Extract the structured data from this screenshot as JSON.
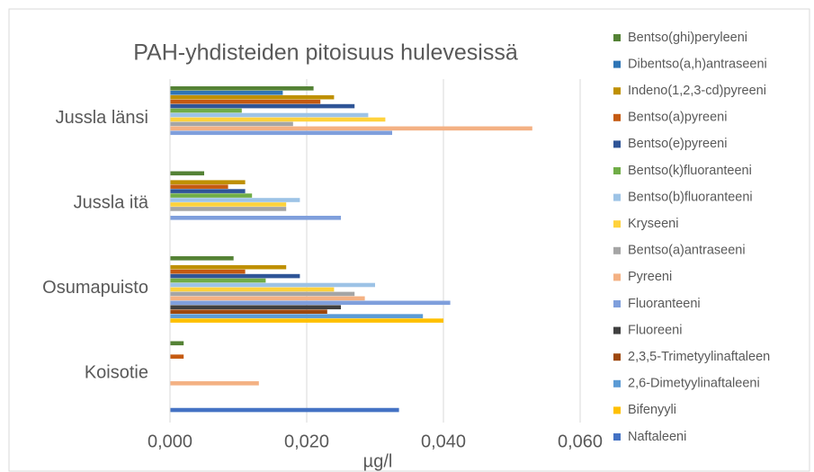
{
  "chart_data": {
    "type": "bar",
    "orientation": "horizontal",
    "title": "PAH-yhdisteiden pitoisuus hulevesissä",
    "x_label": "µg/l",
    "categories": [
      "Jussla länsi",
      "Jussla itä",
      "Osumapuisto",
      "Koisotie"
    ],
    "xlim": [
      0,
      0.06
    ],
    "xticks": [
      {
        "value": 0,
        "label": "0,000"
      },
      {
        "value": 0.02,
        "label": "0,020"
      },
      {
        "value": 0.04,
        "label": "0,040"
      },
      {
        "value": 0.06,
        "label": "0,060"
      }
    ],
    "grid": true,
    "legend": "right",
    "series": [
      {
        "name": "Bentso(ghi)peryleeni",
        "color": "#548235",
        "values": [
          0.021,
          0.005,
          0.0093,
          0.002
        ]
      },
      {
        "name": "Dibentso(a,h)antraseeni",
        "color": "#2e75b6",
        "values": [
          0.0165,
          null,
          null,
          null
        ]
      },
      {
        "name": "Indeno(1,2,3-cd)pyreeni",
        "color": "#bf9000",
        "values": [
          0.024,
          0.011,
          0.017,
          null
        ]
      },
      {
        "name": "Bentso(a)pyreeni",
        "color": "#c55a11",
        "values": [
          0.022,
          0.0085,
          0.011,
          0.002
        ]
      },
      {
        "name": "Bentso(e)pyreeni",
        "color": "#2f5597",
        "values": [
          0.027,
          0.011,
          0.019,
          null
        ]
      },
      {
        "name": "Bentso(k)fluoranteeni",
        "color": "#70ad47",
        "values": [
          0.0105,
          0.012,
          0.014,
          null
        ]
      },
      {
        "name": "Bentso(b)fluoranteeni",
        "color": "#9dc3e6",
        "values": [
          0.029,
          0.019,
          0.03,
          null
        ]
      },
      {
        "name": "Kryseeni",
        "color": "#ffd23c",
        "values": [
          0.0315,
          0.017,
          0.024,
          null
        ]
      },
      {
        "name": "Bentso(a)antraseeni",
        "color": "#a5a5a5",
        "values": [
          0.018,
          0.017,
          0.027,
          null
        ]
      },
      {
        "name": "Pyreeni",
        "color": "#f4b183",
        "values": [
          0.053,
          null,
          0.0285,
          0.013
        ]
      },
      {
        "name": "Fluoranteeni",
        "color": "#7f9fdc",
        "values": [
          0.0325,
          0.025,
          0.041,
          null
        ]
      },
      {
        "name": "Fluoreeni",
        "color": "#404040",
        "values": [
          null,
          null,
          0.025,
          null
        ]
      },
      {
        "name": "2,3,5-Trimetyylinaftaleen",
        "color": "#9e480e",
        "values": [
          null,
          null,
          0.023,
          null
        ]
      },
      {
        "name": "2,6-Dimetyylinaftaleeni",
        "color": "#5b9bd5",
        "values": [
          null,
          null,
          0.037,
          null
        ]
      },
      {
        "name": "Bifenyyli",
        "color": "#ffc000",
        "values": [
          null,
          null,
          0.04,
          null
        ]
      },
      {
        "name": "Naftaleeni",
        "color": "#4472c4",
        "values": [
          null,
          null,
          null,
          0.0335
        ]
      }
    ]
  }
}
